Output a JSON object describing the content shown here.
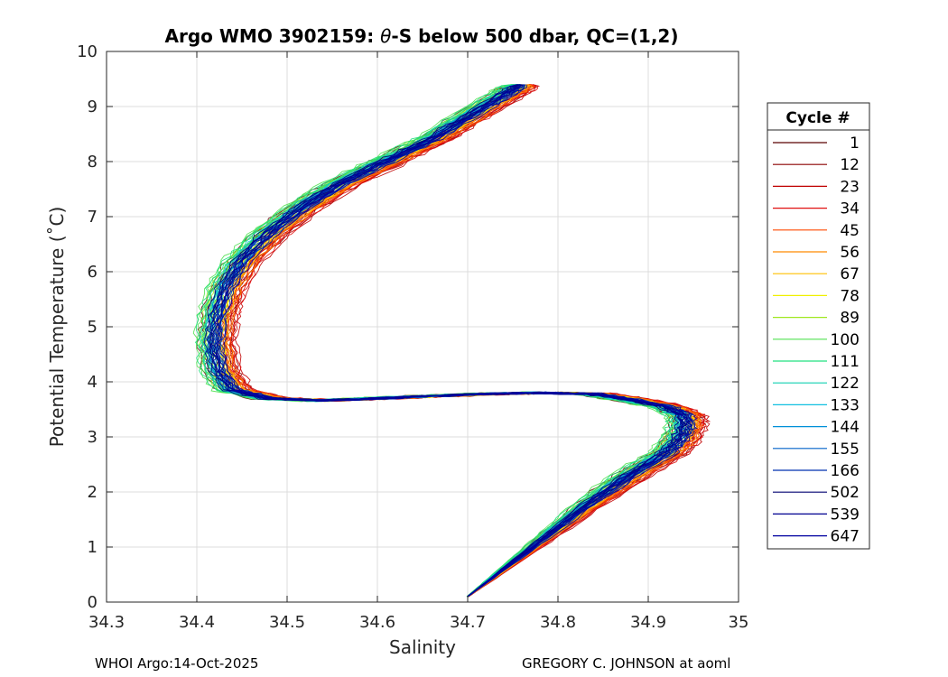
{
  "chart_data": {
    "type": "line",
    "title_prefix": "Argo WMO 3902159: ",
    "title_symbol": "θ",
    "title_suffix": "-S below 500 dbar,  QC=(1,2)",
    "xlabel": "Salinity",
    "ylabel": "Potential Temperature (˚C)",
    "xlim": [
      34.3,
      35.0
    ],
    "ylim": [
      0,
      10
    ],
    "xticks": [
      "34.3",
      "34.4",
      "34.5",
      "34.6",
      "34.7",
      "34.8",
      "34.9",
      "35"
    ],
    "yticks": [
      "0",
      "1",
      "2",
      "3",
      "4",
      "5",
      "6",
      "7",
      "8",
      "9",
      "10"
    ],
    "grid": true,
    "legend_title": "Cycle #",
    "legend_position": "right",
    "mean_profile": {
      "salinity": [
        34.7,
        34.72,
        34.76,
        34.8,
        34.84,
        34.88,
        34.92,
        34.935,
        34.942,
        34.94,
        34.92,
        34.88,
        34.84,
        34.78,
        34.72,
        34.66,
        34.6,
        34.54,
        34.48,
        34.44,
        34.425,
        34.42,
        34.423,
        34.432,
        34.45,
        34.48,
        34.52,
        34.56,
        34.61,
        34.66,
        34.7,
        34.74,
        34.76
      ],
      "theta": [
        0.1,
        0.35,
        0.85,
        1.35,
        1.85,
        2.3,
        2.7,
        2.95,
        3.2,
        3.4,
        3.55,
        3.68,
        3.78,
        3.8,
        3.78,
        3.74,
        3.7,
        3.66,
        3.7,
        3.85,
        4.2,
        4.7,
        5.2,
        5.7,
        6.2,
        6.7,
        7.2,
        7.6,
        8.0,
        8.4,
        8.8,
        9.2,
        9.4
      ]
    },
    "series": [
      {
        "name": "1",
        "color": "#5a0000",
        "offset": -0.012
      },
      {
        "name": "12",
        "color": "#8c0000",
        "offset": 0.014
      },
      {
        "name": "23",
        "color": "#c00000",
        "offset": 0.018
      },
      {
        "name": "34",
        "color": "#e01010",
        "offset": 0.016
      },
      {
        "name": "45",
        "color": "#ff4a00",
        "offset": 0.012
      },
      {
        "name": "56",
        "color": "#ff8a00",
        "offset": 0.01
      },
      {
        "name": "67",
        "color": "#ffbf00",
        "offset": 0.006
      },
      {
        "name": "78",
        "color": "#f0f000",
        "offset": 0.002
      },
      {
        "name": "89",
        "color": "#a0e820",
        "offset": -0.01
      },
      {
        "name": "100",
        "color": "#50e050",
        "offset": -0.016
      },
      {
        "name": "111",
        "color": "#20e080",
        "offset": -0.014
      },
      {
        "name": "122",
        "color": "#10d0b0",
        "offset": -0.008
      },
      {
        "name": "133",
        "color": "#10c0e0",
        "offset": -0.004
      },
      {
        "name": "144",
        "color": "#0090d8",
        "offset": -0.002
      },
      {
        "name": "155",
        "color": "#0060c8",
        "offset": 0.0
      },
      {
        "name": "166",
        "color": "#0030b0",
        "offset": 0.002
      },
      {
        "name": "502",
        "color": "#000070",
        "offset": -0.004
      },
      {
        "name": "539",
        "color": "#000090",
        "offset": -0.002
      },
      {
        "name": "647",
        "color": "#0000a0",
        "offset": 0.004
      }
    ]
  },
  "footer": {
    "left": "WHOI Argo:14-Oct-2025",
    "right": "GREGORY C. JOHNSON at aoml"
  }
}
